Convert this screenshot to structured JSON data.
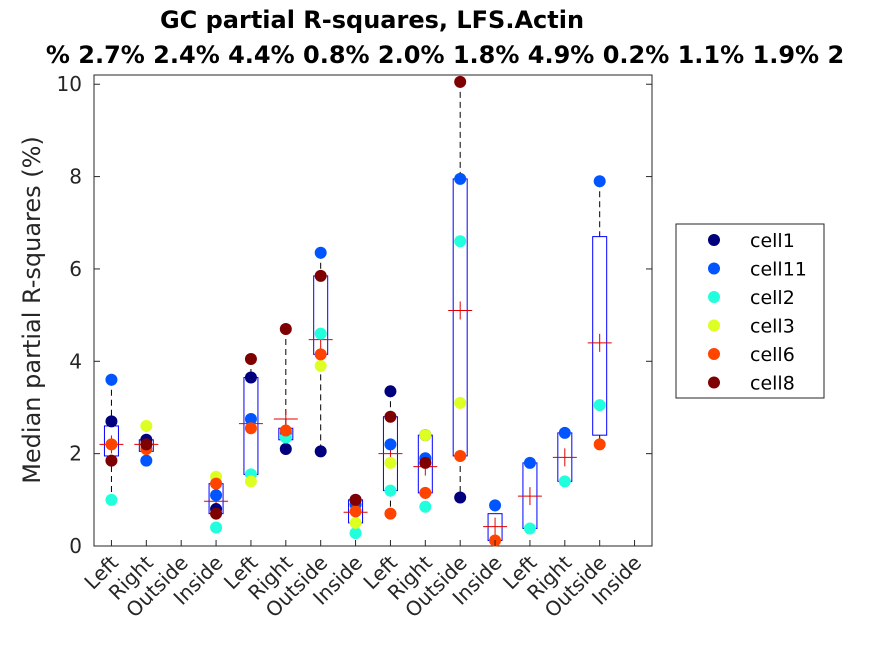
{
  "chart_data": {
    "type": "box",
    "title": "GC partial R-squares, LFS.Actin",
    "subtitle": "% 2.7% 2.4% 4.4% 0.8% 2.0% 1.8% 4.9% 0.2% 1.1% 1.9% 2",
    "ylabel": "Median partial R-squares (%)",
    "xlabel": "",
    "ylim": [
      0,
      10.2
    ],
    "yticks": [
      "0",
      "2",
      "4",
      "6",
      "8",
      "10"
    ],
    "grid": false,
    "legend_position": "right",
    "categories": [
      "Left",
      "Right",
      "Outside",
      "Inside",
      "Left",
      "Right",
      "Outside",
      "Inside",
      "Left",
      "Right",
      "Outside",
      "Inside",
      "Left",
      "Right",
      "Outside",
      "Inside"
    ],
    "series": [
      {
        "name": "cell1",
        "color": "#00007f",
        "values": [
          2.7,
          2.3,
          null,
          0.8,
          3.65,
          2.1,
          2.05,
          1.0,
          3.35,
          2.4,
          1.05,
          null,
          null,
          null,
          null,
          null
        ]
      },
      {
        "name": "cell11",
        "color": "#0055ff",
        "values": [
          3.6,
          1.85,
          null,
          1.1,
          2.75,
          2.45,
          6.35,
          0.9,
          2.2,
          1.9,
          7.95,
          0.88,
          1.8,
          2.45,
          7.9,
          null
        ]
      },
      {
        "name": "cell2",
        "color": "#22ffdd",
        "values": [
          1.0,
          null,
          null,
          0.4,
          1.55,
          2.35,
          4.6,
          0.28,
          1.2,
          0.85,
          6.6,
          null,
          0.38,
          1.4,
          3.05,
          null
        ]
      },
      {
        "name": "cell3",
        "color": "#ddff22",
        "values": [
          null,
          2.6,
          null,
          1.5,
          1.4,
          null,
          3.9,
          0.5,
          1.8,
          2.4,
          3.1,
          null,
          null,
          null,
          null,
          null
        ]
      },
      {
        "name": "cell6",
        "color": "#ff4400",
        "values": [
          2.2,
          2.1,
          null,
          1.35,
          2.55,
          2.5,
          4.15,
          0.75,
          0.7,
          1.15,
          1.95,
          0.12,
          null,
          null,
          2.2,
          null
        ]
      },
      {
        "name": "cell8",
        "color": "#7f0000",
        "values": [
          1.85,
          2.2,
          null,
          0.7,
          4.05,
          4.7,
          5.85,
          1.0,
          2.8,
          1.8,
          10.05,
          null,
          null,
          null,
          null,
          null
        ]
      }
    ],
    "boxes": [
      {
        "q1": 1.95,
        "q3": 2.6,
        "whisk_lo": 1.0,
        "whisk_hi": 3.6,
        "mean": 2.2
      },
      {
        "q1": 2.05,
        "q3": 2.3,
        "whisk_lo": 1.85,
        "whisk_hi": 2.6,
        "mean": 2.2
      },
      null,
      {
        "q1": 0.7,
        "q3": 1.35,
        "whisk_lo": 0.4,
        "whisk_hi": 1.5,
        "mean": 0.97
      },
      {
        "q1": 1.55,
        "q3": 3.65,
        "whisk_lo": 1.4,
        "whisk_hi": 4.05,
        "mean": 2.65
      },
      {
        "q1": 2.3,
        "q3": 2.55,
        "whisk_lo": 2.1,
        "whisk_hi": 4.7,
        "mean": 2.75
      },
      {
        "q1": 4.15,
        "q3": 5.85,
        "whisk_lo": 2.05,
        "whisk_hi": 6.35,
        "mean": 4.47
      },
      {
        "q1": 0.5,
        "q3": 1.0,
        "whisk_lo": 0.28,
        "whisk_hi": 1.0,
        "mean": 0.73
      },
      {
        "q1": 1.2,
        "q3": 2.8,
        "whisk_lo": 0.7,
        "whisk_hi": 3.35,
        "mean": 2.0
      },
      {
        "q1": 1.15,
        "q3": 2.4,
        "whisk_lo": 0.85,
        "whisk_hi": 2.4,
        "mean": 1.72
      },
      {
        "q1": 1.95,
        "q3": 7.95,
        "whisk_lo": 1.05,
        "whisk_hi": 10.05,
        "mean": 5.1
      },
      {
        "q1": 0.12,
        "q3": 0.7,
        "whisk_lo": 0.12,
        "whisk_hi": 0.88,
        "mean": 0.42
      },
      {
        "q1": 0.38,
        "q3": 1.8,
        "whisk_lo": 0.38,
        "whisk_hi": 1.8,
        "mean": 1.08
      },
      {
        "q1": 1.4,
        "q3": 2.45,
        "whisk_lo": 1.4,
        "whisk_hi": 2.45,
        "mean": 1.92
      },
      {
        "q1": 2.4,
        "q3": 6.7,
        "whisk_lo": 2.2,
        "whisk_hi": 7.9,
        "mean": 4.4
      },
      null
    ]
  }
}
